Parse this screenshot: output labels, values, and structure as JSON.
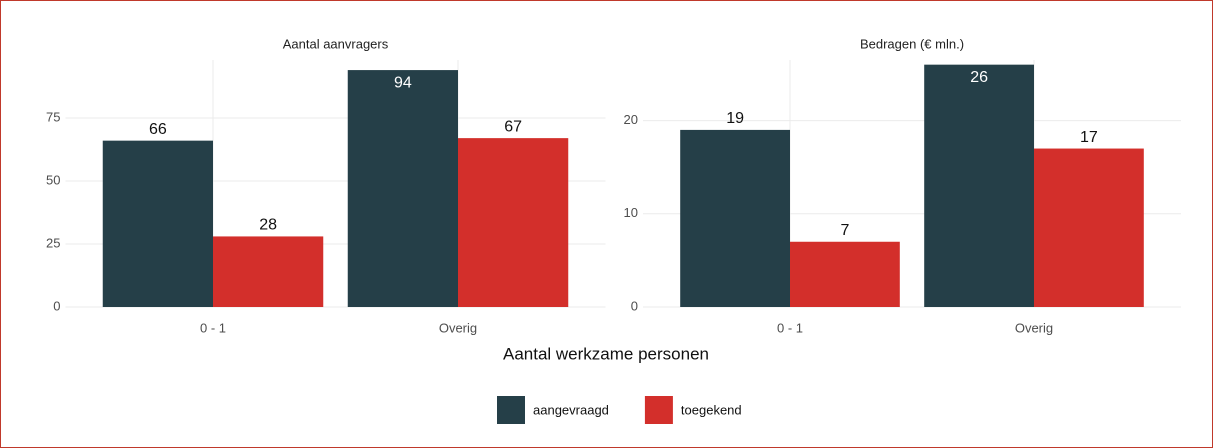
{
  "chart_data": [
    {
      "type": "bar",
      "title": "Aantal aanvragers",
      "xlabel": "Aantal werkzame personen",
      "categories": [
        "0 - 1",
        "Overig"
      ],
      "series": [
        {
          "name": "aangevraagd",
          "color": "#253f48",
          "values": [
            66,
            94
          ]
        },
        {
          "name": "toegekend",
          "color": "#d32f2b",
          "values": [
            28,
            67
          ]
        }
      ],
      "ylim": [
        0,
        98
      ],
      "yticks": [
        0,
        25,
        50,
        75
      ],
      "grid": true,
      "legend": "bottom"
    },
    {
      "type": "bar",
      "title": "Bedragen (€ mln.)",
      "categories": [
        "0 - 1",
        "Overig"
      ],
      "series": [
        {
          "color": "#253f48",
          "values": [
            19,
            26
          ]
        },
        {
          "color": "#d32f2b",
          "values": [
            7,
            17
          ]
        }
      ],
      "ylim": [
        0,
        26.5
      ],
      "yticks": [
        0,
        10,
        20
      ],
      "grid": true
    }
  ]
}
